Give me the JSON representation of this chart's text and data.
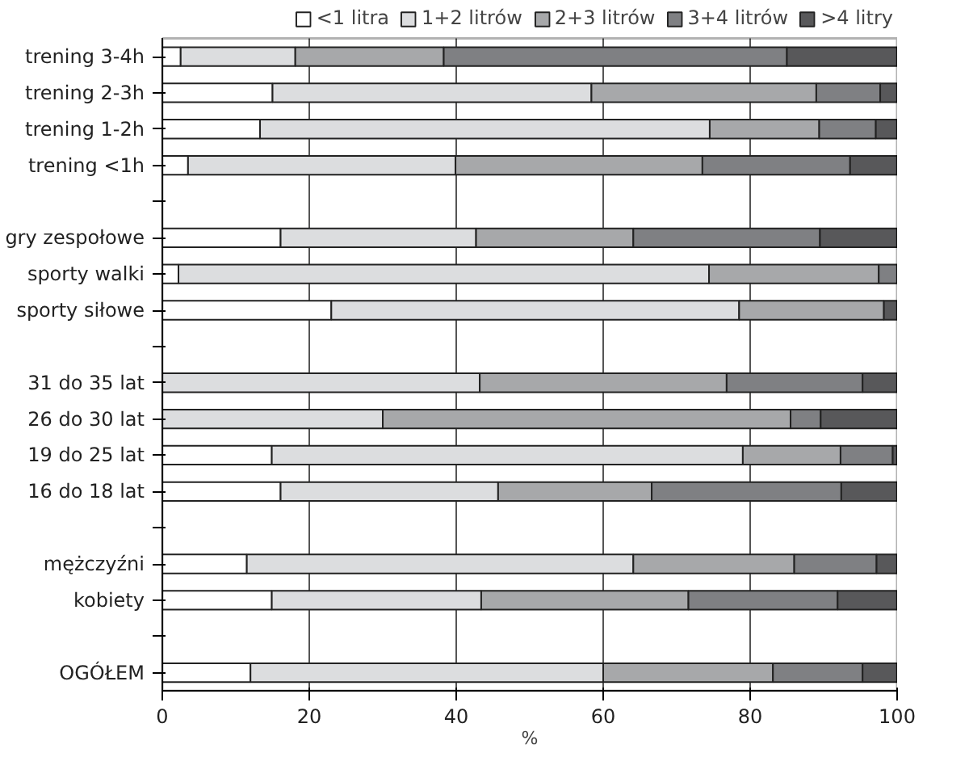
{
  "chart_data": {
    "type": "bar",
    "orientation": "horizontal",
    "stacked": true,
    "xlabel": "%",
    "legend": "top",
    "grid": "x",
    "categories": [
      "trening 3-4h",
      "trening 2-3h",
      "trening 1-2h",
      "trening <1h",
      null,
      "gry zespołowe",
      "sporty walki",
      "sporty siłowe",
      null,
      "31 do 35 lat",
      "26 do 30 lat",
      "19 do 25 lat",
      "16 do 18 lat",
      null,
      "mężczyźni",
      "kobiety",
      null,
      "OGÓŁEM"
    ],
    "xlim": [
      0,
      100
    ],
    "xticks": [
      0,
      20,
      40,
      60,
      80,
      100
    ],
    "series": [
      {
        "name": "<1 litra",
        "color": "#ffffff",
        "values": [
          2.5,
          15.0,
          13.3,
          3.5,
          null,
          16.1,
          2.2,
          23.0,
          null,
          null,
          null,
          14.9,
          16.1,
          null,
          11.5,
          14.9,
          null,
          12.0
        ]
      },
      {
        "name": "1+2 litrów",
        "color": "#dcdddf",
        "values": [
          15.6,
          43.4,
          61.2,
          36.4,
          null,
          26.6,
          72.2,
          55.5,
          null,
          43.2,
          30.0,
          64.1,
          29.6,
          null,
          52.6,
          28.5,
          null,
          48.0
        ]
      },
      {
        "name": "2+3 litrów",
        "color": "#a7a8aa",
        "values": [
          20.2,
          30.6,
          14.9,
          33.6,
          null,
          21.4,
          23.1,
          19.7,
          null,
          33.6,
          55.5,
          13.3,
          20.9,
          null,
          21.9,
          28.2,
          null,
          23.1
        ]
      },
      {
        "name": "3+4 litrów",
        "color": "#7f8083",
        "values": [
          46.7,
          8.7,
          7.7,
          20.1,
          null,
          25.4,
          2.5,
          null,
          null,
          18.5,
          4.1,
          7.1,
          25.8,
          null,
          11.2,
          20.3,
          null,
          12.2
        ]
      },
      {
        "name": ">4 litry",
        "color": "#58585a",
        "values": [
          15.0,
          2.3,
          2.9,
          6.4,
          null,
          10.5,
          null,
          1.8,
          null,
          4.7,
          10.4,
          0.6,
          7.6,
          null,
          2.8,
          8.1,
          null,
          4.7
        ]
      }
    ]
  }
}
